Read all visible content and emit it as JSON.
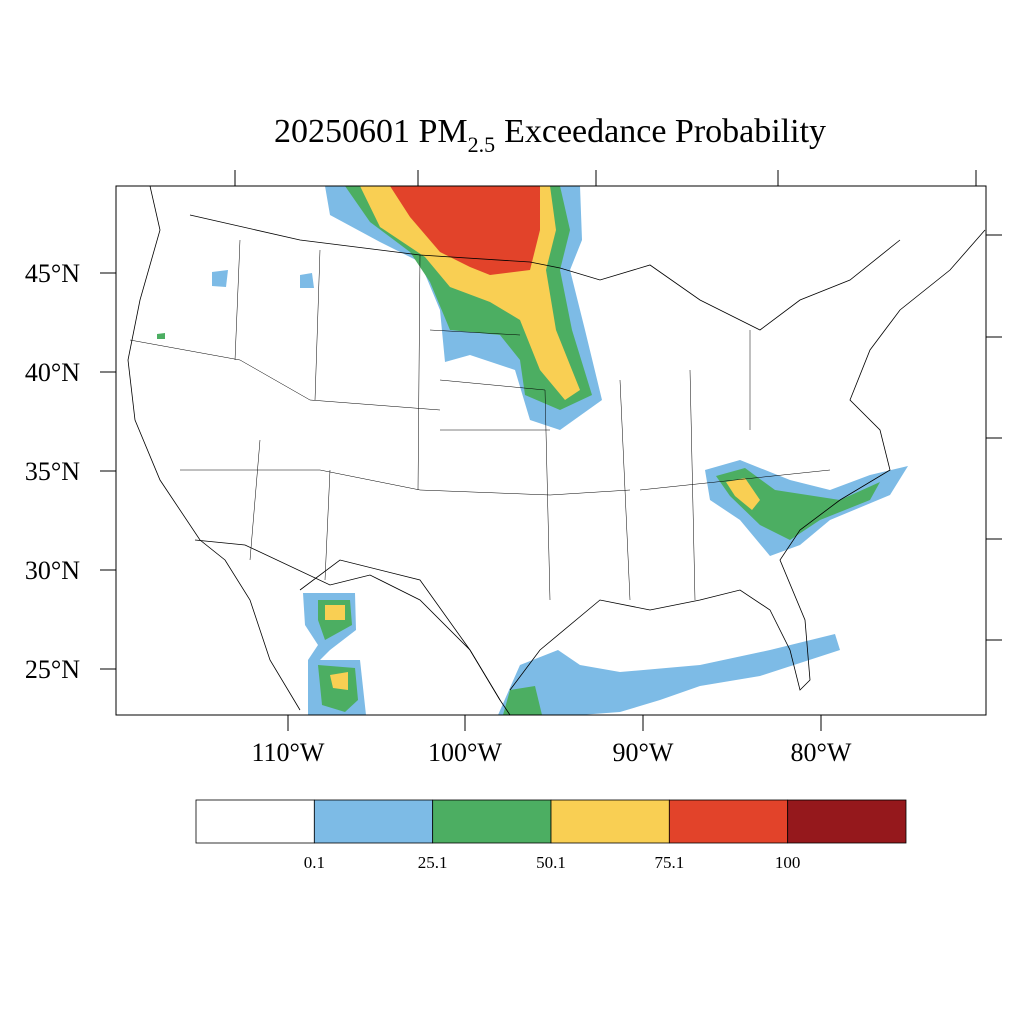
{
  "title": {
    "date_species": "20250601 PM",
    "subscript": "2.5",
    "rest": "Exceedance Probability"
  },
  "lat_labels": [
    "45°N",
    "40°N",
    "35°N",
    "30°N",
    "25°N"
  ],
  "lon_labels": [
    "110°W",
    "100°W",
    "90°W",
    "80°W"
  ],
  "colorbar": {
    "colors": [
      "#ffffff",
      "#7dbbe6",
      "#4cae62",
      "#f9cf53",
      "#e2432a",
      "#95181c"
    ],
    "labels": [
      "0.1",
      "25.1",
      "50.1",
      "75.1",
      "100"
    ]
  }
}
